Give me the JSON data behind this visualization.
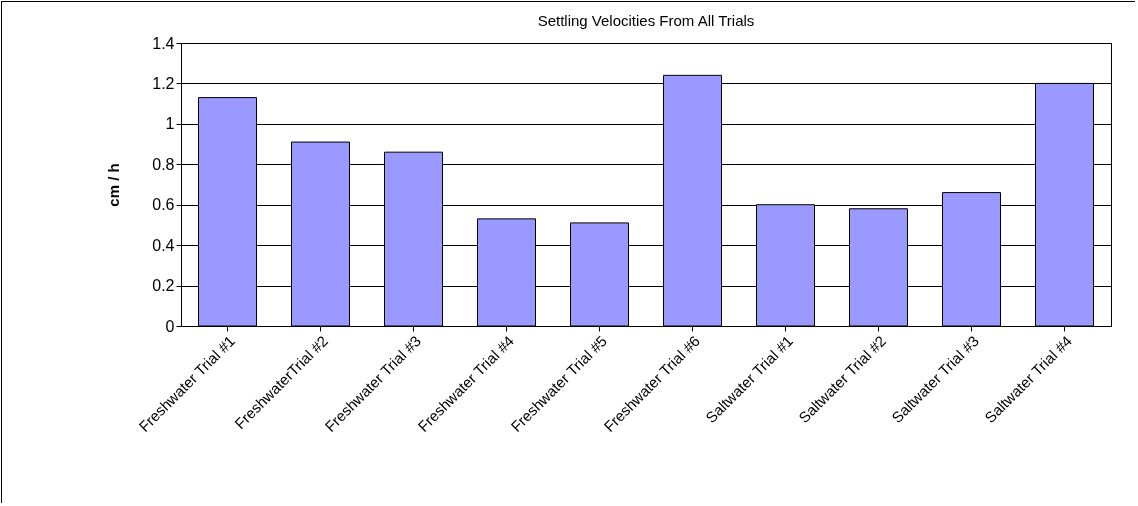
{
  "chart_data": {
    "type": "bar",
    "title": "Settling Velocities From All Trials",
    "ylabel": "cm / h",
    "categories": [
      "Freshwater Trial #1",
      "FreshwaterTrial #2",
      "Freshwater Trial #3",
      "Freshwater Trial #4",
      "Freshwater Trial #5",
      "Freshwater Trial #6",
      "Saltwater Trial #1",
      "Saltwater Trial #2",
      "Saltwater Trial #3",
      "Saltwater Trial #4"
    ],
    "values": [
      1.13,
      0.91,
      0.86,
      0.53,
      0.51,
      1.24,
      0.6,
      0.58,
      0.66,
      1.2
    ],
    "color": "#9999ff",
    "ylim": [
      0,
      1.4
    ],
    "yticks": [
      0,
      0.2,
      0.4,
      0.6,
      0.8,
      1,
      1.2,
      1.4
    ],
    "grid": "y"
  }
}
